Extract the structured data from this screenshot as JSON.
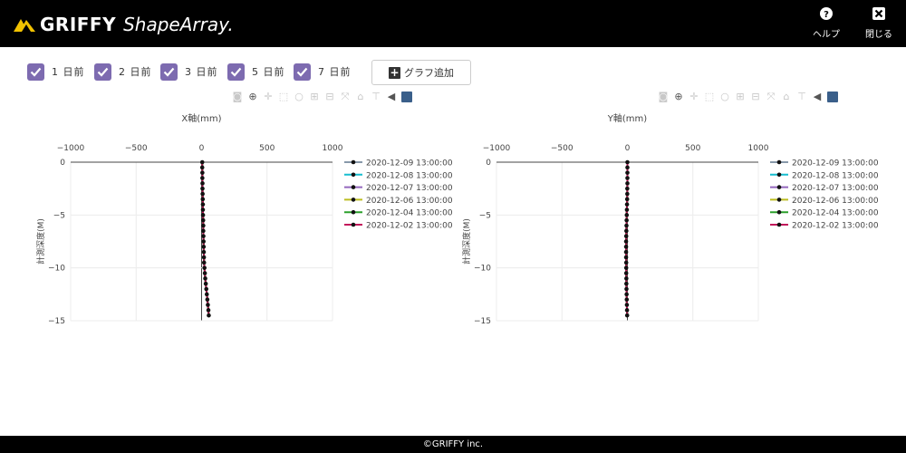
{
  "header": {
    "brand": "GRIFFY",
    "product": "ShapeArray.",
    "help_label": "ヘルプ",
    "close_label": "閉じる"
  },
  "toolbar": {
    "checkboxes": [
      {
        "label": "1 日前",
        "checked": true
      },
      {
        "label": "2 日前",
        "checked": true
      },
      {
        "label": "3 日前",
        "checked": true
      },
      {
        "label": "5 日前",
        "checked": true
      },
      {
        "label": "7 日前",
        "checked": true
      }
    ],
    "add_graph_label": "グラフ追加"
  },
  "colors": {
    "checkbox": "#7d6bb0",
    "series": [
      "#8899aa",
      "#17becf",
      "#9467bd",
      "#bcbd22",
      "#2ca02c",
      "#c2185b"
    ],
    "marker": "#111111"
  },
  "chart_data": [
    {
      "type": "line",
      "title": "X軸(mm)",
      "ylabel": "計測深度(M)",
      "xlim": [
        -1000,
        1000
      ],
      "ylim": [
        -15,
        0
      ],
      "xticks": [
        "−1000",
        "−500",
        "0",
        "500",
        "1000"
      ],
      "yticks": [
        "0",
        "−5",
        "−10",
        "−15"
      ],
      "legend": "right",
      "depths": [
        0,
        -0.5,
        -1,
        -1.5,
        -2,
        -2.5,
        -3,
        -3.5,
        -4,
        -4.5,
        -5,
        -5.5,
        -6,
        -6.5,
        -7,
        -7.5,
        -8,
        -8.5,
        -9,
        -9.5,
        -10,
        -10.5,
        -11,
        -11.5,
        -12,
        -12.5,
        -13,
        -13.5,
        -14,
        -14.5
      ],
      "series": [
        {
          "name": "2020-12-09 13:00:00",
          "values": [
            5,
            5,
            6,
            6,
            7,
            7,
            8,
            9,
            10,
            10,
            11,
            12,
            13,
            13,
            14,
            15,
            16,
            17,
            18,
            19,
            22,
            25,
            28,
            32,
            36,
            40,
            44,
            48,
            52,
            55
          ]
        },
        {
          "name": "2020-12-08 13:00:00",
          "values": [
            5,
            5,
            6,
            6,
            7,
            7,
            8,
            9,
            10,
            10,
            11,
            12,
            13,
            13,
            14,
            15,
            16,
            17,
            18,
            19,
            22,
            25,
            28,
            32,
            36,
            40,
            44,
            48,
            52,
            55
          ]
        },
        {
          "name": "2020-12-07 13:00:00",
          "values": [
            5,
            5,
            6,
            6,
            7,
            7,
            8,
            9,
            10,
            10,
            11,
            12,
            13,
            13,
            14,
            15,
            16,
            17,
            18,
            19,
            22,
            25,
            28,
            32,
            36,
            40,
            44,
            48,
            52,
            55
          ]
        },
        {
          "name": "2020-12-06 13:00:00",
          "values": [
            5,
            5,
            6,
            6,
            7,
            7,
            8,
            9,
            10,
            10,
            11,
            12,
            13,
            13,
            14,
            15,
            16,
            17,
            18,
            19,
            22,
            25,
            28,
            32,
            36,
            40,
            44,
            48,
            52,
            55
          ]
        },
        {
          "name": "2020-12-04 13:00:00",
          "values": [
            5,
            5,
            6,
            6,
            7,
            7,
            8,
            9,
            10,
            10,
            11,
            12,
            13,
            13,
            14,
            15,
            16,
            17,
            18,
            19,
            22,
            25,
            28,
            32,
            36,
            40,
            44,
            48,
            52,
            55
          ]
        },
        {
          "name": "2020-12-02 13:00:00",
          "values": [
            5,
            5,
            6,
            6,
            7,
            7,
            8,
            9,
            10,
            10,
            11,
            12,
            13,
            13,
            14,
            15,
            16,
            17,
            18,
            19,
            22,
            25,
            28,
            32,
            36,
            40,
            44,
            48,
            52,
            55
          ]
        }
      ]
    },
    {
      "type": "line",
      "title": "Y軸(mm)",
      "ylabel": "計測深度(M)",
      "xlim": [
        -1000,
        1000
      ],
      "ylim": [
        -15,
        0
      ],
      "xticks": [
        "−1000",
        "−500",
        "0",
        "500",
        "1000"
      ],
      "yticks": [
        "0",
        "−5",
        "−10",
        "−15"
      ],
      "legend": "right",
      "depths": [
        0,
        -0.5,
        -1,
        -1.5,
        -2,
        -2.5,
        -3,
        -3.5,
        -4,
        -4.5,
        -5,
        -5.5,
        -6,
        -6.5,
        -7,
        -7.5,
        -8,
        -8.5,
        -9,
        -9.5,
        -10,
        -10.5,
        -11,
        -11.5,
        -12,
        -12.5,
        -13,
        -13.5,
        -14,
        -14.5
      ],
      "series": [
        {
          "name": "2020-12-09 13:00:00",
          "values": [
            0,
            0,
            0,
            0,
            0,
            -1,
            -1,
            -2,
            -3,
            -4,
            -5,
            -6,
            -7,
            -8,
            -9,
            -10,
            -10,
            -10,
            -10,
            -9,
            -9,
            -9,
            -8,
            -8,
            -7,
            -6,
            -5,
            -4,
            -3,
            -2
          ]
        },
        {
          "name": "2020-12-08 13:00:00",
          "values": [
            0,
            0,
            0,
            0,
            0,
            -1,
            -1,
            -2,
            -3,
            -4,
            -5,
            -6,
            -7,
            -8,
            -9,
            -10,
            -10,
            -10,
            -10,
            -9,
            -9,
            -9,
            -8,
            -8,
            -7,
            -6,
            -5,
            -4,
            -3,
            -2
          ]
        },
        {
          "name": "2020-12-07 13:00:00",
          "values": [
            0,
            0,
            0,
            0,
            0,
            -1,
            -1,
            -2,
            -3,
            -4,
            -5,
            -6,
            -7,
            -8,
            -9,
            -10,
            -10,
            -10,
            -10,
            -9,
            -9,
            -9,
            -8,
            -8,
            -7,
            -6,
            -5,
            -4,
            -3,
            -2
          ]
        },
        {
          "name": "2020-12-06 13:00:00",
          "values": [
            0,
            0,
            0,
            0,
            0,
            -1,
            -1,
            -2,
            -3,
            -4,
            -5,
            -6,
            -7,
            -8,
            -9,
            -10,
            -10,
            -10,
            -10,
            -9,
            -9,
            -9,
            -8,
            -8,
            -7,
            -6,
            -5,
            -4,
            -3,
            -2
          ]
        },
        {
          "name": "2020-12-04 13:00:00",
          "values": [
            0,
            0,
            0,
            0,
            0,
            -1,
            -1,
            -2,
            -3,
            -4,
            -5,
            -6,
            -7,
            -8,
            -9,
            -10,
            -10,
            -10,
            -10,
            -9,
            -9,
            -9,
            -8,
            -8,
            -7,
            -6,
            -5,
            -4,
            -3,
            -2
          ]
        },
        {
          "name": "2020-12-02 13:00:00",
          "values": [
            0,
            0,
            0,
            0,
            0,
            -1,
            -1,
            -2,
            -3,
            -4,
            -5,
            -6,
            -7,
            -8,
            -9,
            -10,
            -10,
            -10,
            -10,
            -9,
            -9,
            -9,
            -8,
            -8,
            -7,
            -6,
            -5,
            -4,
            -3,
            -2
          ]
        }
      ]
    }
  ],
  "footer": {
    "copyright": "©GRIFFY inc."
  }
}
